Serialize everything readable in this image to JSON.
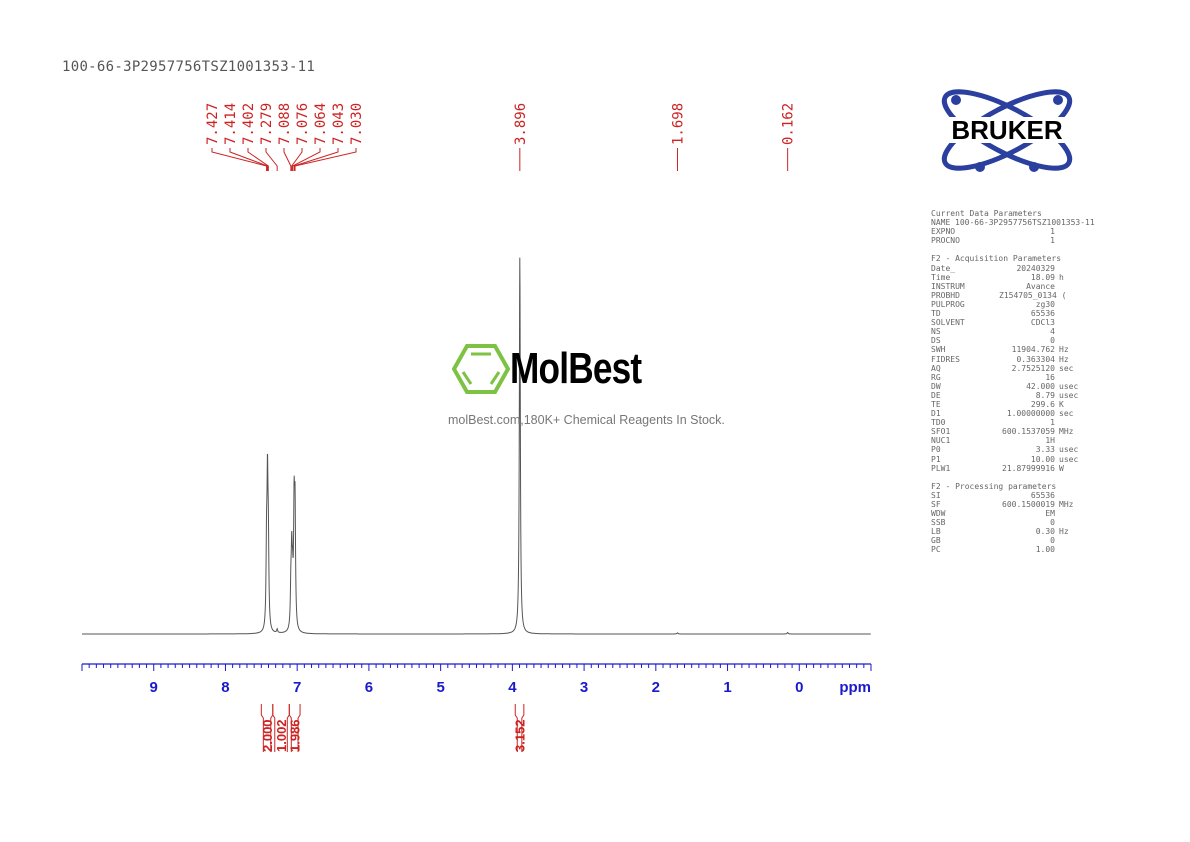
{
  "title": "100-66-3P2957756TSZ1001353-11",
  "watermark": {
    "brand": "MolBest",
    "tagline": "molBest.com,180K+ Chemical Reagents In Stock.",
    "color": "#7dc242"
  },
  "logo": {
    "text": "BRUKER",
    "color": "#2a3f9e"
  },
  "parameters": {
    "current": {
      "heading": "Current Data Parameters",
      "rows": [
        [
          "NAME",
          "100-66-3P2957756TSZ1001353-11",
          ""
        ],
        [
          "EXPNO",
          "1",
          ""
        ],
        [
          "PROCNO",
          "1",
          ""
        ]
      ]
    },
    "acquisition": {
      "heading": "F2 - Acquisition Parameters",
      "rows": [
        [
          "Date_",
          "20240329",
          ""
        ],
        [
          "Time",
          "18.09",
          "h"
        ],
        [
          "INSTRUM",
          "Avance",
          ""
        ],
        [
          "PROBHD",
          "Z154705_0134 (",
          ""
        ],
        [
          "PULPROG",
          "zg30",
          ""
        ],
        [
          "TD",
          "65536",
          ""
        ],
        [
          "SOLVENT",
          "CDCl3",
          ""
        ],
        [
          "NS",
          "4",
          ""
        ],
        [
          "DS",
          "0",
          ""
        ],
        [
          "SWH",
          "11904.762",
          "Hz"
        ],
        [
          "FIDRES",
          "0.363304",
          "Hz"
        ],
        [
          "AQ",
          "2.7525120",
          "sec"
        ],
        [
          "RG",
          "16",
          ""
        ],
        [
          "DW",
          "42.000",
          "usec"
        ],
        [
          "DE",
          "8.79",
          "usec"
        ],
        [
          "TE",
          "299.6",
          "K"
        ],
        [
          "D1",
          "1.00000000",
          "sec"
        ],
        [
          "TD0",
          "1",
          ""
        ],
        [
          "SFO1",
          "600.1537059",
          "MHz"
        ],
        [
          "NUC1",
          "1H",
          ""
        ],
        [
          "P0",
          "3.33",
          "usec"
        ],
        [
          "P1",
          "10.00",
          "usec"
        ],
        [
          "PLW1",
          "21.87999916",
          "W"
        ]
      ]
    },
    "processing": {
      "heading": "F2 - Processing parameters",
      "rows": [
        [
          "SI",
          "65536",
          ""
        ],
        [
          "SF",
          "600.1500019",
          "MHz"
        ],
        [
          "WDW",
          "EM",
          ""
        ],
        [
          "SSB",
          "0",
          ""
        ],
        [
          "LB",
          "0.30",
          "Hz"
        ],
        [
          "GB",
          "0",
          ""
        ],
        [
          "PC",
          "1.00",
          ""
        ]
      ]
    }
  },
  "chart_data": {
    "type": "line",
    "xlabel": "ppm",
    "xlim": [
      10.0,
      -1.0
    ],
    "x_reversed": true,
    "x_ticks": [
      "9",
      "8",
      "7",
      "6",
      "5",
      "4",
      "3",
      "2",
      "1",
      "0"
    ],
    "grid": false,
    "colors": {
      "spectrum": "#555555",
      "axis": "#1a1acc",
      "labels": "#cc2222"
    },
    "peak_labels": [
      "7.427",
      "7.414",
      "7.402",
      "7.279",
      "7.088",
      "7.076",
      "7.064",
      "7.043",
      "7.030",
      "3.896",
      "1.698",
      "0.162"
    ],
    "peaks": [
      {
        "ppm": 7.427,
        "intensity": 20
      },
      {
        "ppm": 7.414,
        "intensity": 36
      },
      {
        "ppm": 7.402,
        "intensity": 20
      },
      {
        "ppm": 7.279,
        "intensity": 1
      },
      {
        "ppm": 7.088,
        "intensity": 10
      },
      {
        "ppm": 7.076,
        "intensity": 18
      },
      {
        "ppm": 7.064,
        "intensity": 10
      },
      {
        "ppm": 7.043,
        "intensity": 30
      },
      {
        "ppm": 7.03,
        "intensity": 30
      },
      {
        "ppm": 3.896,
        "intensity": 100
      },
      {
        "ppm": 1.698,
        "intensity": 0.3
      },
      {
        "ppm": 0.162,
        "intensity": 0.4
      }
    ],
    "integrals": [
      {
        "from": 7.5,
        "to": 7.34,
        "value": "2.000"
      },
      {
        "from": 7.34,
        "to": 7.11,
        "value": "1.002"
      },
      {
        "from": 7.11,
        "to": 6.96,
        "value": "1.986"
      },
      {
        "from": 3.96,
        "to": 3.84,
        "value": "3.152"
      }
    ]
  }
}
